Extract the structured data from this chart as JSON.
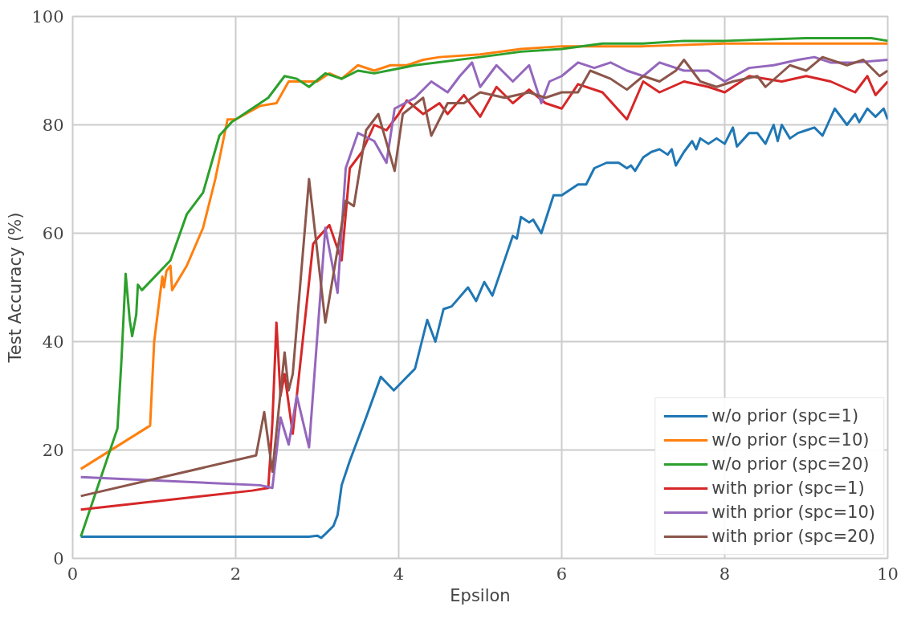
{
  "chart_data": {
    "type": "line",
    "xlabel": "Epsilon",
    "ylabel": "Test Accuracy (%)",
    "xlim": [
      0,
      10
    ],
    "ylim": [
      0,
      100
    ],
    "xticks": [
      0,
      2,
      4,
      6,
      8,
      10
    ],
    "yticks": [
      0,
      20,
      40,
      60,
      80,
      100
    ],
    "grid": true,
    "legend": "bottom right",
    "line_style": "solid",
    "series": [
      {
        "name": "w/o prior (spc=1)",
        "color": "#1f77b4",
        "x": [
          0.1,
          2.9,
          3.0,
          3.05,
          3.1,
          3.2,
          3.25,
          3.3,
          3.4,
          3.6,
          3.78,
          3.94,
          4.2,
          4.35,
          4.45,
          4.55,
          4.65,
          4.85,
          4.95,
          5.05,
          5.15,
          5.4,
          5.45,
          5.5,
          5.6,
          5.65,
          5.75,
          5.9,
          6.0,
          6.1,
          6.2,
          6.3,
          6.4,
          6.55,
          6.7,
          6.8,
          6.85,
          6.9,
          7.0,
          7.1,
          7.2,
          7.3,
          7.35,
          7.4,
          7.5,
          7.6,
          7.65,
          7.7,
          7.8,
          7.9,
          8.0,
          8.1,
          8.15,
          8.3,
          8.4,
          8.5,
          8.6,
          8.65,
          8.7,
          8.8,
          8.9,
          9.0,
          9.1,
          9.2,
          9.35,
          9.5,
          9.6,
          9.65,
          9.75,
          9.85,
          9.95,
          10
        ],
        "values": [
          4,
          4,
          4.2,
          3.8,
          4.5,
          6,
          8,
          13.5,
          18,
          26,
          33.5,
          31,
          35,
          44,
          40,
          46,
          46.5,
          50,
          47.5,
          51,
          48.5,
          59.5,
          59,
          63,
          62,
          62.5,
          60,
          67,
          67,
          68,
          69,
          69,
          72,
          73,
          73,
          72,
          72.5,
          71.5,
          74,
          75,
          75.5,
          74.5,
          75.5,
          72.5,
          75,
          77,
          75.5,
          77.5,
          76.5,
          77.5,
          76.5,
          79.5,
          76,
          78.5,
          78.5,
          76.5,
          80,
          77,
          80,
          77.5,
          78.5,
          79,
          79.5,
          78,
          83,
          80,
          82,
          80.5,
          83,
          81.5,
          83,
          81
        ]
      },
      {
        "name": "w/o prior (spc=10)",
        "color": "#ff7f0e",
        "x": [
          0.1,
          0.95,
          1.0,
          1.05,
          1.1,
          1.12,
          1.15,
          1.2,
          1.22,
          1.4,
          1.6,
          1.75,
          1.9,
          2.0,
          2.3,
          2.5,
          2.65,
          2.75,
          3.0,
          3.15,
          3.3,
          3.5,
          3.7,
          3.9,
          4.1,
          4.3,
          4.5,
          5.0,
          5.5,
          6.0,
          7,
          8,
          9,
          10
        ],
        "values": [
          16.5,
          24.5,
          40,
          46,
          52,
          50,
          53,
          54,
          49.5,
          54,
          61,
          70,
          81,
          81,
          83.5,
          84,
          88,
          88,
          88,
          89.5,
          88.5,
          91,
          90,
          91,
          91,
          92,
          92.5,
          93,
          94,
          94.5,
          94.5,
          95,
          95,
          95
        ]
      },
      {
        "name": "w/o prior (spc=20)",
        "color": "#2ca02c",
        "x": [
          0.1,
          0.55,
          0.6,
          0.65,
          0.7,
          0.73,
          0.78,
          0.8,
          0.85,
          1.2,
          1.4,
          1.6,
          1.8,
          1.95,
          2.4,
          2.6,
          2.75,
          2.9,
          3.1,
          3.3,
          3.5,
          3.7,
          4.2,
          5,
          5.5,
          6,
          6.5,
          7,
          7.5,
          8,
          9,
          9.8,
          10
        ],
        "values": [
          4,
          24,
          37,
          52.5,
          44,
          41,
          45,
          50.5,
          49.5,
          55,
          63.5,
          67.5,
          78,
          80.5,
          85,
          89,
          88.5,
          87,
          89.5,
          88.5,
          90,
          89.5,
          91,
          92.5,
          93.5,
          94,
          95,
          95,
          95.5,
          95.5,
          96,
          96,
          95.5
        ]
      },
      {
        "name": "with prior (spc=1)",
        "color": "#d62728",
        "x": [
          0.1,
          2.2,
          2.4,
          2.45,
          2.5,
          2.55,
          2.6,
          2.7,
          2.95,
          3.0,
          3.15,
          3.3,
          3.4,
          3.55,
          3.7,
          3.85,
          4.0,
          4.1,
          4.3,
          4.5,
          4.6,
          4.8,
          5.0,
          5.2,
          5.4,
          5.6,
          5.8,
          6.0,
          6.2,
          6.5,
          6.8,
          7.0,
          7.2,
          7.5,
          7.8,
          8.0,
          8.3,
          8.7,
          9.0,
          9.3,
          9.6,
          9.75,
          9.85,
          10
        ],
        "values": [
          9,
          12.5,
          13,
          25,
          43.5,
          30,
          34,
          23,
          58,
          59,
          61.5,
          55,
          72,
          75,
          80,
          79,
          82,
          84.5,
          82,
          84,
          82,
          85.5,
          81.5,
          87,
          84,
          86.5,
          84,
          83,
          87.5,
          86,
          81,
          88,
          86,
          88,
          87,
          86,
          89,
          88,
          89,
          88,
          86,
          89,
          85.5,
          88
        ]
      },
      {
        "name": "with prior (spc=10)",
        "color": "#9467bd",
        "x": [
          0.1,
          2.3,
          2.45,
          2.55,
          2.65,
          2.75,
          2.9,
          3.1,
          3.25,
          3.35,
          3.5,
          3.7,
          3.85,
          3.95,
          4.2,
          4.4,
          4.6,
          4.75,
          4.9,
          5.0,
          5.2,
          5.4,
          5.6,
          5.75,
          5.85,
          6.0,
          6.2,
          6.4,
          6.6,
          6.8,
          7.0,
          7.2,
          7.5,
          7.8,
          8.0,
          8.3,
          8.6,
          8.9,
          9.1,
          9.3,
          9.6,
          10
        ],
        "values": [
          15,
          13.5,
          13,
          26,
          21,
          30,
          20.5,
          61,
          49,
          72,
          78.5,
          77,
          73,
          83,
          85,
          88,
          86,
          89,
          91.5,
          87,
          91,
          88,
          91,
          84,
          88,
          89,
          91.5,
          90.5,
          91.5,
          90,
          89,
          91.5,
          90,
          90,
          88,
          90.5,
          91,
          92,
          92.5,
          91.5,
          91.5,
          92
        ]
      },
      {
        "name": "with prior (spc=20)",
        "color": "#8c564b",
        "x": [
          0.1,
          2.25,
          2.35,
          2.45,
          2.6,
          2.65,
          2.7,
          2.9,
          3.1,
          3.35,
          3.45,
          3.6,
          3.75,
          3.95,
          4.05,
          4.3,
          4.4,
          4.6,
          4.8,
          5.0,
          5.3,
          5.6,
          5.8,
          6.0,
          6.2,
          6.35,
          6.6,
          6.8,
          7.0,
          7.2,
          7.4,
          7.5,
          7.7,
          7.9,
          8.1,
          8.4,
          8.5,
          8.8,
          9.0,
          9.2,
          9.5,
          9.7,
          9.9,
          10
        ],
        "values": [
          11.5,
          19,
          27,
          16,
          38,
          31,
          34,
          70,
          43.5,
          66,
          65,
          79,
          82,
          71.5,
          82,
          85,
          78,
          84,
          84,
          86,
          85,
          86,
          85,
          86,
          86,
          90,
          88.5,
          86.5,
          89,
          88,
          90,
          92,
          88,
          87,
          88,
          89,
          87,
          91,
          90,
          92.5,
          91,
          92,
          89,
          90
        ]
      }
    ]
  }
}
